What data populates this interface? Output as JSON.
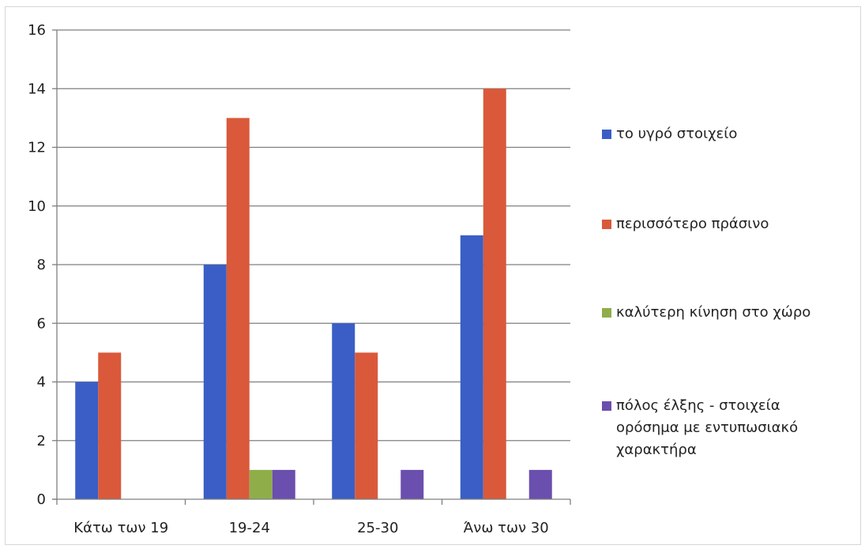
{
  "chart_data": {
    "type": "bar",
    "title": "",
    "xlabel": "",
    "ylabel": "",
    "categories": [
      "Κάτω των 19",
      "19-24",
      "25-30",
      "Άνω των 30"
    ],
    "series": [
      {
        "name": "το υγρό στοιχείο",
        "values": [
          4,
          8,
          6,
          9
        ],
        "color": "#3a5ec6"
      },
      {
        "name": "περισσότερο πράσινο",
        "values": [
          5,
          13,
          5,
          14
        ],
        "color": "#d9593a"
      },
      {
        "name": "καλύτερη κίνηση στο χώρο",
        "values": [
          0,
          1,
          0,
          0
        ],
        "color": "#8fae4a"
      },
      {
        "name": "πόλος έλξης - στοιχεία ορόσημα με εντυπωσιακό χαρακτήρα",
        "values": [
          0,
          1,
          1,
          1
        ],
        "color": "#6a4fae"
      }
    ],
    "ylim": [
      0,
      16
    ],
    "yticks": [
      "0",
      "2",
      "4",
      "6",
      "8",
      "10",
      "12",
      "14",
      "16"
    ],
    "grid": true,
    "legend_position": "right"
  }
}
